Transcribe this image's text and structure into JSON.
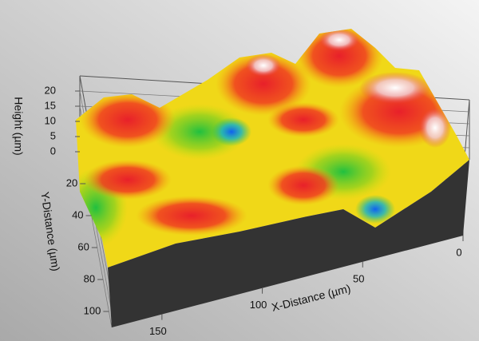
{
  "chart_data": {
    "type": "surface3d",
    "xlabel": "X-Distance (µm)",
    "ylabel": "Y-Distance (µm)",
    "zlabel": "Height (µm)",
    "xlim": [
      0,
      175
    ],
    "ylim": [
      0,
      110
    ],
    "zlim": [
      0,
      25
    ],
    "xticks": [
      0,
      50,
      100,
      150
    ],
    "yticks": [
      20,
      40,
      60,
      80,
      100
    ],
    "zticks": [
      0,
      5,
      10,
      15,
      20
    ]
  }
}
